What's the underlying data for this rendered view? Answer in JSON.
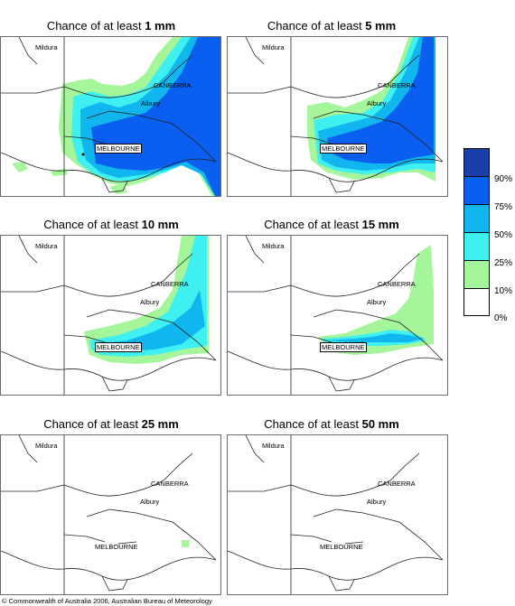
{
  "panels": [
    {
      "prefix": "Chance of at least ",
      "amount": "1 mm"
    },
    {
      "prefix": "Chance of at least ",
      "amount": "5 mm"
    },
    {
      "prefix": "Chance of at least ",
      "amount": "10 mm"
    },
    {
      "prefix": "Chance of at least ",
      "amount": "15 mm"
    },
    {
      "prefix": "Chance of at least ",
      "amount": "25 mm"
    },
    {
      "prefix": "Chance of at least ",
      "amount": "50 mm"
    }
  ],
  "places": {
    "mildura": "Mildura",
    "canberra": "CANBERRA",
    "albury": "Albury",
    "melbourne": "MELBOURNE"
  },
  "legend": {
    "colors": [
      "#1a3fa8",
      "#0a5ff0",
      "#12b6ee",
      "#3ff0f0",
      "#a5f59a",
      "#ffffff"
    ],
    "labels": [
      "90%",
      "75%",
      "50%",
      "25%",
      "10%",
      "0%"
    ]
  },
  "copyright": "© Commonwealth of Australia 2006, Australian Bureau of Meteorology"
}
